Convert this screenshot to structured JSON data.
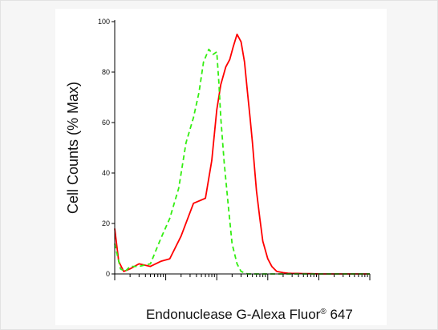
{
  "chart_data": {
    "type": "line",
    "title": "",
    "ylabel": "Cell Counts (% Max)",
    "xlabel": {
      "text": "Endonuclease G-Alexa Fluor",
      "mark": "®",
      "suffix": " 647"
    },
    "xscale": "log",
    "xlim": [
      1,
      100000
    ],
    "ylim": [
      0,
      100
    ],
    "yticks": [
      0,
      20,
      40,
      60,
      80,
      100
    ],
    "grid": false,
    "series": [
      {
        "color": "#ff0000",
        "style": "solid",
        "x": [
          1,
          1.2,
          1.5,
          2,
          3,
          5,
          8,
          12,
          20,
          35,
          60,
          80,
          100,
          120,
          150,
          180,
          210,
          250,
          300,
          350,
          400,
          450,
          500,
          550,
          600,
          700,
          800,
          1000,
          1200,
          1500,
          2000,
          2500,
          3000,
          4000,
          5000,
          7000,
          10000,
          100000
        ],
        "y": [
          18,
          5,
          1,
          2,
          4,
          3,
          5,
          6,
          15,
          28,
          30,
          45,
          65,
          75,
          82,
          85,
          90,
          95,
          92,
          84,
          72,
          62,
          52,
          42,
          33,
          22,
          13,
          6,
          3,
          1,
          0.5,
          0.3,
          0.2,
          0.2,
          0.1,
          0.1,
          0,
          0
        ]
      },
      {
        "color": "#33ee11",
        "style": "dashed",
        "x": [
          1,
          1.3,
          1.6,
          2,
          3,
          5,
          8,
          12,
          18,
          25,
          35,
          45,
          55,
          70,
          85,
          100,
          110,
          120,
          140,
          170,
          200,
          250,
          300,
          400,
          500,
          700,
          1000,
          100000
        ],
        "y": [
          12,
          2,
          1,
          3,
          3,
          4,
          14,
          22,
          34,
          52,
          62,
          72,
          84,
          89,
          87,
          88,
          76,
          62,
          44,
          26,
          12,
          4,
          1,
          0,
          0,
          0,
          0,
          0
        ]
      }
    ]
  }
}
